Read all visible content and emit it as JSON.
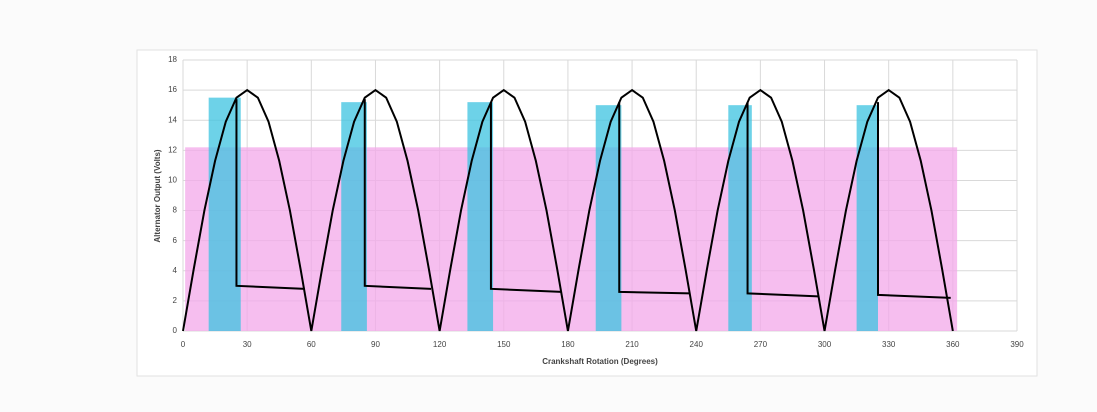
{
  "chart_data": {
    "type": "line",
    "x_label": "Crankshaft Rotation (Degrees)",
    "y_label": "Alternator Output (Volts)",
    "xlim": [
      0,
      390
    ],
    "ylim": [
      0,
      18
    ],
    "xticks": [
      0,
      30,
      60,
      90,
      120,
      150,
      180,
      210,
      240,
      270,
      300,
      330,
      360,
      390
    ],
    "yticks": [
      0,
      2,
      4,
      6,
      8,
      10,
      12,
      14,
      16,
      18
    ],
    "grid": true,
    "regions": [
      {
        "color": "#f3a8ea",
        "x": [
          1,
          362
        ],
        "y": [
          0,
          12.2
        ]
      },
      {
        "color": "#3cc3e0",
        "x": [
          12,
          27
        ],
        "y": [
          0,
          15.5
        ]
      },
      {
        "color": "#3cc3e0",
        "x": [
          74,
          86
        ],
        "y": [
          0,
          15.2
        ]
      },
      {
        "color": "#3cc3e0",
        "x": [
          133,
          145
        ],
        "y": [
          0,
          15.2
        ]
      },
      {
        "color": "#3cc3e0",
        "x": [
          193,
          205
        ],
        "y": [
          0,
          15
        ]
      },
      {
        "color": "#3cc3e0",
        "x": [
          255,
          266
        ],
        "y": [
          0,
          15
        ]
      },
      {
        "color": "#3cc3e0",
        "x": [
          315,
          325
        ],
        "y": [
          0,
          15
        ]
      }
    ],
    "series": [
      {
        "color": "#000000",
        "x": [
          0,
          5,
          10,
          15,
          20,
          25,
          30,
          35,
          40,
          45,
          50,
          55,
          60,
          65,
          70,
          75,
          80,
          85,
          90,
          95,
          100,
          105,
          110,
          115,
          120,
          125,
          130,
          135,
          140,
          145,
          150,
          155,
          160,
          165,
          170,
          175,
          180,
          185,
          190,
          195,
          200,
          205,
          210,
          215,
          220,
          225,
          230,
          235,
          240,
          245,
          250,
          255,
          260,
          265,
          270,
          275,
          280,
          285,
          290,
          295,
          300,
          305,
          310,
          315,
          320,
          325,
          330,
          335,
          340,
          345,
          350,
          355,
          360
        ],
        "values": [
          0,
          4.1,
          8,
          11.3,
          13.9,
          15.5,
          16,
          15.5,
          13.9,
          11.3,
          8,
          4.1,
          0,
          4.1,
          8,
          11.3,
          13.9,
          15.5,
          16,
          15.5,
          13.9,
          11.3,
          8,
          4.1,
          0,
          4.1,
          8,
          11.3,
          13.9,
          15.5,
          16,
          15.5,
          13.9,
          11.3,
          8,
          4.1,
          0,
          4.1,
          8,
          11.3,
          13.9,
          15.5,
          16,
          15.5,
          13.9,
          11.3,
          8,
          4.1,
          0,
          4.1,
          8,
          11.3,
          13.9,
          15.5,
          16,
          15.5,
          13.9,
          11.3,
          8,
          4.1,
          0,
          4.1,
          8,
          11.3,
          13.9,
          15.5,
          16,
          15.5,
          13.9,
          11.3,
          8,
          4.1,
          0
        ]
      },
      {
        "color": "#000000",
        "x": [
          25,
          25,
          57,
          null,
          85,
          85,
          116,
          null,
          144,
          144,
          177,
          null,
          204,
          204,
          237,
          null,
          264,
          264,
          297,
          null,
          325,
          325,
          359
        ],
        "values": [
          15.4,
          3,
          2.8,
          null,
          15.4,
          3,
          2.8,
          null,
          15.2,
          2.8,
          2.6,
          null,
          15.2,
          2.6,
          2.5,
          null,
          15.2,
          2.5,
          2.3,
          null,
          15.2,
          2.4,
          2.2
        ]
      }
    ]
  }
}
